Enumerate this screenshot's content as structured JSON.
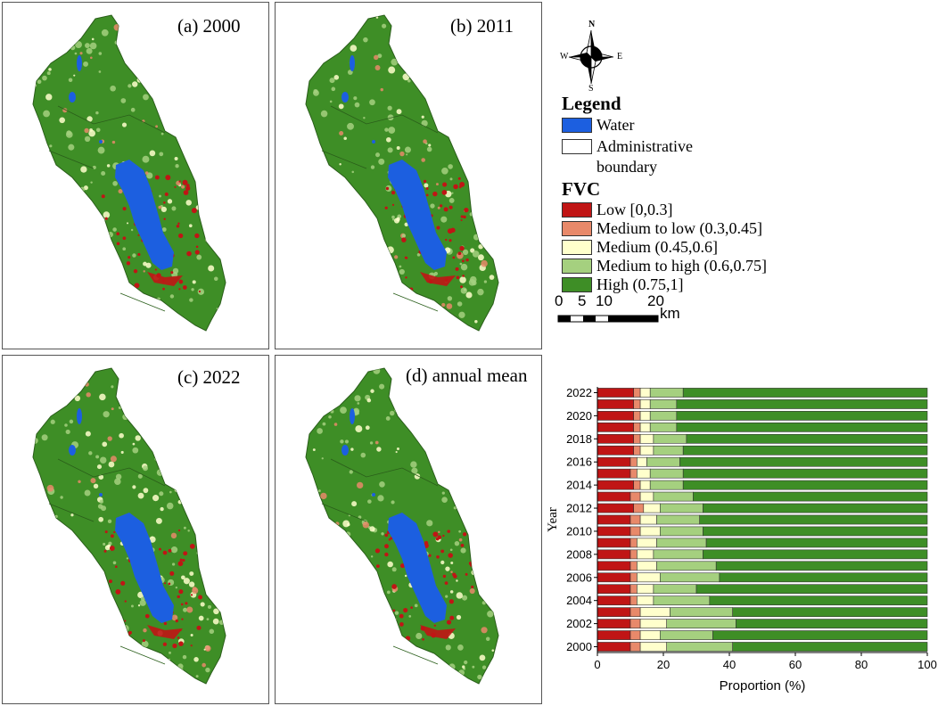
{
  "panels": [
    {
      "title": "(a) 2000"
    },
    {
      "title": "(b) 2011"
    },
    {
      "title": "(c) 2022"
    },
    {
      "title": "(d) annual mean"
    }
  ],
  "compass": {
    "n": "N",
    "s": "S",
    "e": "E",
    "w": "W"
  },
  "legend": {
    "title": "Legend",
    "water": "Water",
    "admin_line1": "Administrative",
    "admin_line2": "boundary",
    "fvc_title": "FVC",
    "classes": [
      {
        "label": "Low [0,0.3]",
        "color": "#c01515"
      },
      {
        "label": "Medium to low (0.3,0.45]",
        "color": "#e8896a"
      },
      {
        "label": "Medium (0.45,0.6]",
        "color": "#ffffcc"
      },
      {
        "label": "Medium to high (0.6,0.75]",
        "color": "#a5d07f"
      },
      {
        "label": "High (0.75,1]",
        "color": "#3e8e26"
      }
    ],
    "water_color": "#1c5fe0",
    "scale_ticks": [
      "0",
      "5",
      "10",
      "20"
    ],
    "scale_unit": "km"
  },
  "chart_data": {
    "type": "bar",
    "orientation": "horizontal",
    "stacked": true,
    "xlabel": "Proportion (%)",
    "ylabel": "Year",
    "xlim": [
      0,
      100
    ],
    "xticks": [
      0,
      20,
      40,
      60,
      80,
      100
    ],
    "categories": [
      2000,
      2001,
      2002,
      2003,
      2004,
      2005,
      2006,
      2007,
      2008,
      2009,
      2010,
      2011,
      2012,
      2013,
      2014,
      2015,
      2016,
      2017,
      2018,
      2019,
      2020,
      2021,
      2022
    ],
    "ytick_labels": [
      "2000",
      "2002",
      "2004",
      "2006",
      "2008",
      "2010",
      "2012",
      "2014",
      "2016",
      "2018",
      "2020",
      "2022"
    ],
    "series": [
      {
        "color": "#c01515",
        "values": [
          10,
          10,
          10,
          10,
          10,
          10,
          10,
          10,
          10,
          10,
          10,
          10,
          11,
          10,
          11,
          10,
          10,
          11,
          11,
          11,
          11,
          11,
          11
        ]
      },
      {
        "color": "#e8896a",
        "values": [
          3,
          3,
          3,
          3,
          2,
          2,
          2,
          2,
          2,
          2,
          3,
          3,
          3,
          3,
          2,
          2,
          2,
          2,
          2,
          2,
          2,
          2,
          2
        ]
      },
      {
        "color": "#ffffcc",
        "values": [
          8,
          6,
          8,
          9,
          5,
          5,
          7,
          6,
          5,
          6,
          6,
          5,
          5,
          4,
          3,
          4,
          3,
          4,
          4,
          3,
          3,
          3,
          3
        ]
      },
      {
        "color": "#a5d07f",
        "values": [
          20,
          16,
          21,
          19,
          17,
          13,
          18,
          18,
          15,
          15,
          13,
          13,
          13,
          12,
          10,
          10,
          10,
          9,
          10,
          8,
          8,
          8,
          10
        ]
      },
      {
        "color": "#3e8e26",
        "values": [
          59,
          65,
          58,
          59,
          66,
          70,
          63,
          64,
          68,
          67,
          68,
          69,
          68,
          71,
          74,
          74,
          75,
          74,
          73,
          76,
          76,
          76,
          74
        ]
      }
    ]
  }
}
